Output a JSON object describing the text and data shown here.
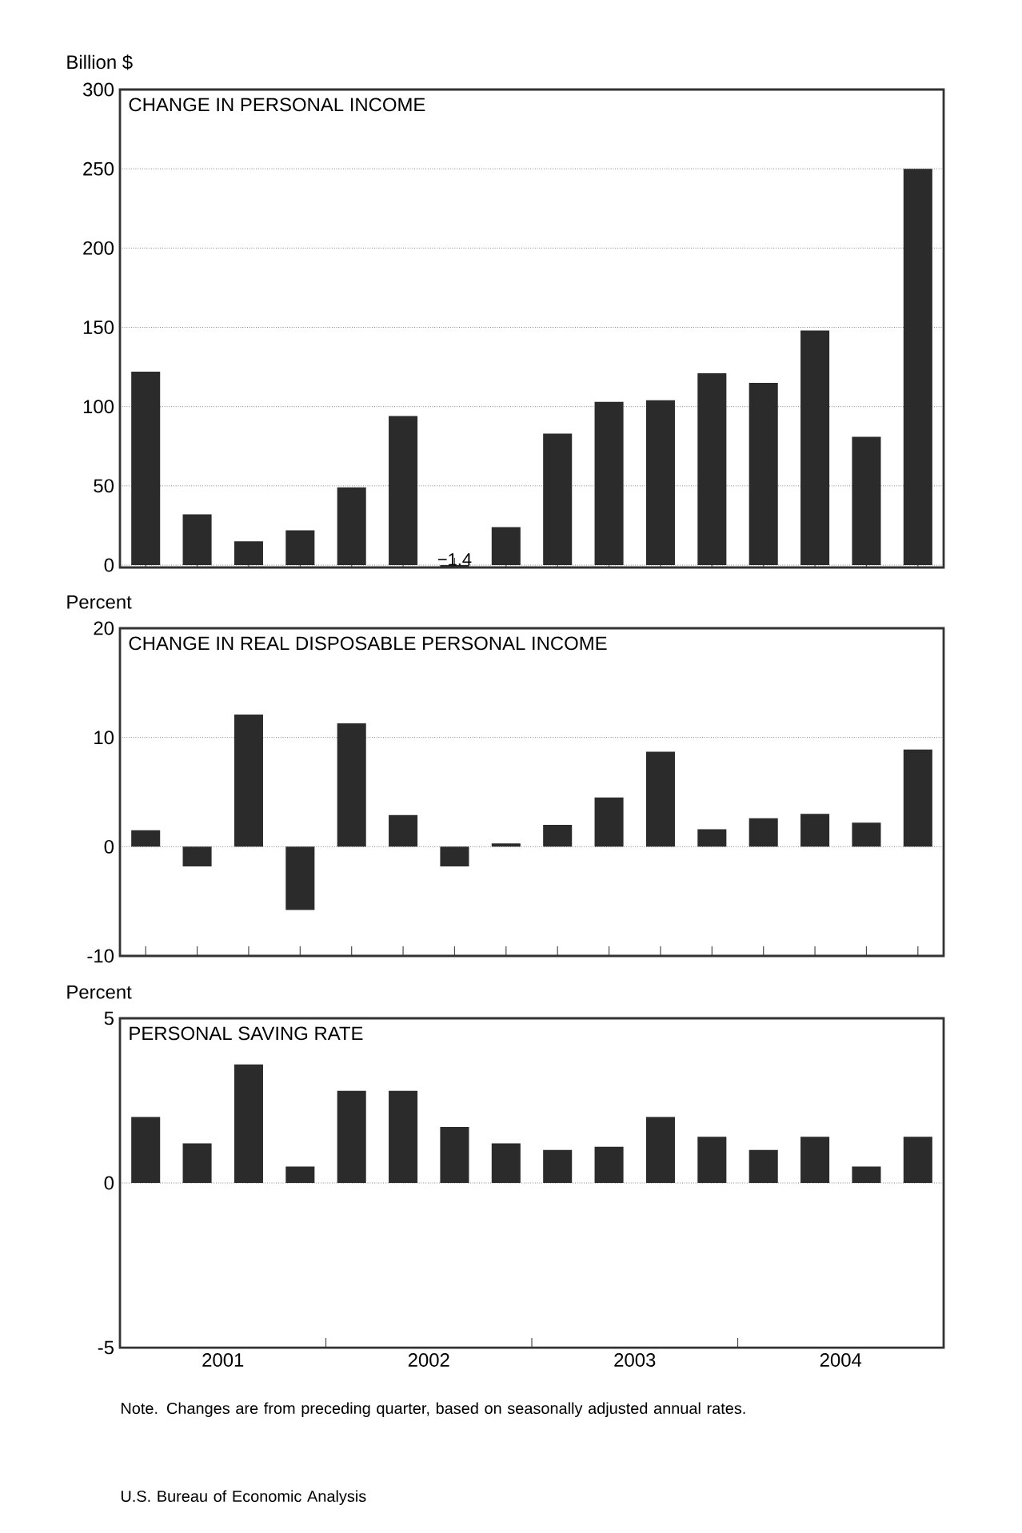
{
  "chart_data": [
    {
      "type": "bar",
      "title": "CHANGE IN PERSONAL  INCOME",
      "ylabel": "Billion $",
      "categories": [
        null,
        null,
        null,
        null,
        null,
        null,
        null,
        null,
        null,
        null,
        null,
        null,
        null,
        null,
        null,
        null
      ],
      "values": [
        122,
        32,
        15,
        22,
        49,
        94,
        -1.4,
        24,
        83,
        103,
        104,
        121,
        115,
        148,
        81,
        250
      ],
      "value_labels": [
        null,
        null,
        null,
        null,
        null,
        null,
        "−1.4",
        null,
        null,
        null,
        null,
        null,
        null,
        null,
        null,
        null
      ],
      "color": "#2b2b2b",
      "ylim": [
        -1.5,
        300
      ],
      "yticks": [
        0,
        50,
        100,
        150,
        200,
        250,
        300
      ],
      "grid": "y"
    },
    {
      "type": "bar",
      "title": "CHANGE IN REAL DISPOSABLE PERSONAL INCOME",
      "ylabel": "Percent",
      "categories": [
        null,
        null,
        null,
        null,
        null,
        null,
        null,
        null,
        null,
        null,
        null,
        null,
        null,
        null,
        null,
        null
      ],
      "values": [
        1.5,
        -1.8,
        12.1,
        -5.8,
        11.3,
        2.9,
        -1.8,
        0.3,
        2.0,
        4.5,
        8.7,
        1.6,
        2.6,
        3.0,
        2.2,
        8.9
      ],
      "color": "#2b2b2b",
      "ylim": [
        -10,
        20
      ],
      "yticks": [
        -10,
        0,
        10,
        20
      ],
      "grid": "y"
    },
    {
      "type": "bar",
      "title": "PERSONAL SAVING RATE",
      "ylabel": "Percent",
      "x": [
        2001.125,
        2001.375,
        2001.625,
        2001.875,
        2002.125,
        2002.375,
        2002.625,
        2002.875,
        2003.125,
        2003.375,
        2003.625,
        2003.875,
        2004.125,
        2004.375,
        2004.625,
        2004.875
      ],
      "values": [
        2.0,
        1.2,
        3.6,
        0.5,
        2.8,
        2.8,
        1.7,
        1.2,
        1.0,
        1.1,
        2.0,
        1.4,
        1.0,
        1.4,
        0.5,
        1.4
      ],
      "color": "#2b2b2b",
      "xlim": [
        2001,
        2005
      ],
      "ylim": [
        -5,
        5
      ],
      "yticks": [
        -5,
        0,
        5
      ],
      "xticks": [
        {
          "value": 2001.5,
          "label": "2001"
        },
        {
          "value": 2002,
          "label": null
        },
        {
          "value": 2002.5,
          "label": "2002"
        },
        {
          "value": 2003,
          "label": null
        },
        {
          "value": 2003.5,
          "label": "2003"
        },
        {
          "value": 2004,
          "label": null
        },
        {
          "value": 2004.5,
          "label": "2004"
        }
      ],
      "grid": "y",
      "annotations": [
        "Note. Changes are from preceding quarter, based on seasonally adjusted annual rates.",
        "U.S. Bureau of Economic Analysis"
      ]
    }
  ]
}
